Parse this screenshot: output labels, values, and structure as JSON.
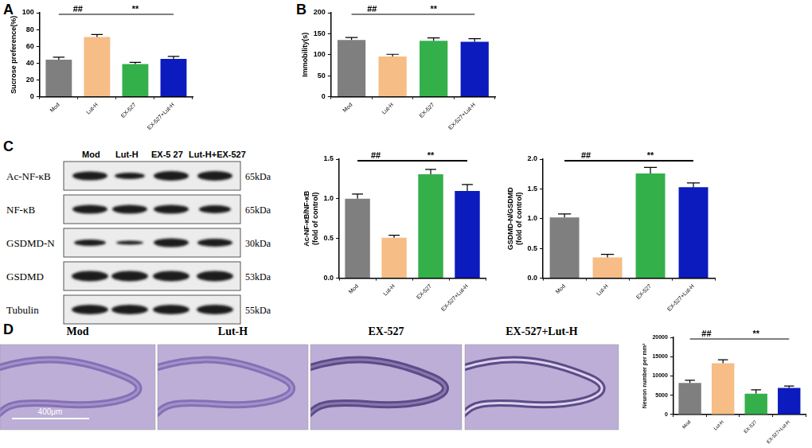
{
  "panels": [
    "A",
    "B",
    "C",
    "D"
  ],
  "chart_data": [
    {
      "type": "bar",
      "categories": [
        "Mod",
        "Lut-H",
        "EX-527",
        "EX-527+Lut-H"
      ],
      "values": [
        44,
        71,
        39,
        45
      ],
      "errors": [
        3,
        3,
        2,
        3
      ],
      "colors": [
        "#7f7f7f",
        "#f6bd86",
        "#34b04b",
        "#0b1bbd"
      ],
      "y_label": "Sucrose preference(%)",
      "ylim": [
        0,
        100
      ],
      "yticks": [
        0,
        20,
        40,
        60,
        80,
        100
      ],
      "grid": false,
      "annotations": [
        {
          "text": "##",
          "from": "Mod",
          "to": "Lut-H"
        },
        {
          "text": "**",
          "from": "Lut-H",
          "to": "EX-527+Lut-H"
        }
      ]
    },
    {
      "type": "bar",
      "categories": [
        "Mod",
        "Lut-H",
        "EX-527",
        "EX-527+Lut-H"
      ],
      "values": [
        135,
        96,
        133,
        131
      ],
      "errors": [
        6,
        5,
        7,
        7
      ],
      "colors": [
        "#7f7f7f",
        "#f6bd86",
        "#34b04b",
        "#0b1bbd"
      ],
      "y_label": "Immobility(s)",
      "ylim": [
        0,
        200
      ],
      "yticks": [
        0,
        50,
        100,
        150,
        200
      ],
      "grid": false,
      "annotations": [
        {
          "text": "##",
          "from": "Mod",
          "to": "Lut-H"
        },
        {
          "text": "**",
          "from": "Lut-H",
          "to": "EX-527+Lut-H"
        }
      ]
    },
    {
      "type": "bar",
      "categories": [
        "Mod",
        "Lut-H",
        "EX-527",
        "EX-527+Lut-H"
      ],
      "values": [
        1.0,
        0.51,
        1.31,
        1.1
      ],
      "errors": [
        0.06,
        0.03,
        0.06,
        0.08
      ],
      "colors": [
        "#7f7f7f",
        "#f6bd86",
        "#34b04b",
        "#0b1bbd"
      ],
      "y_label": [
        "Ac-NF-κB/NF-κB",
        "(fold of control)"
      ],
      "ylim": [
        0,
        1.5
      ],
      "yticks": [
        {
          "value": 0,
          "label": "0.0"
        },
        {
          "value": 0.5,
          "label": "0.5"
        },
        {
          "value": 1,
          "label": "1.0"
        },
        {
          "value": 1.5,
          "label": "1.5"
        }
      ],
      "grid": false,
      "annotations": [
        {
          "text": "##",
          "from": "Mod",
          "to": "Lut-H"
        },
        {
          "text": "**",
          "from": "Lut-H",
          "to": "EX-527+Lut-H"
        }
      ]
    },
    {
      "type": "bar",
      "categories": [
        "Mod",
        "Lut-H",
        "EX-527",
        "EX-527+Lut-H"
      ],
      "values": [
        1.02,
        0.35,
        1.76,
        1.53
      ],
      "errors": [
        0.06,
        0.05,
        0.1,
        0.07
      ],
      "colors": [
        "#7f7f7f",
        "#f6bd86",
        "#34b04b",
        "#0b1bbd"
      ],
      "y_label": [
        "GSDMD-N/GSDMD",
        "(fold of control)"
      ],
      "ylim": [
        0,
        2
      ],
      "yticks": [
        {
          "value": 0,
          "label": "0.0"
        },
        {
          "value": 0.5,
          "label": "0.5"
        },
        {
          "value": 1,
          "label": "1.0"
        },
        {
          "value": 1.5,
          "label": "1.5"
        },
        {
          "value": 2,
          "label": "2.0"
        }
      ],
      "grid": false,
      "annotations": [
        {
          "text": "##",
          "from": "Mod",
          "to": "Lut-H"
        },
        {
          "text": "**",
          "from": "Lut-H",
          "to": "EX-527+Lut-H"
        }
      ]
    },
    {
      "type": "bar",
      "categories": [
        "Mod",
        "Lut-H",
        "EX-527",
        "EX-527+Lut-H"
      ],
      "values": [
        8200,
        13300,
        5400,
        6900
      ],
      "errors": [
        700,
        900,
        1000,
        500
      ],
      "colors": [
        "#7f7f7f",
        "#f6bd86",
        "#34b04b",
        "#0b1bbd"
      ],
      "y_label": "Neuron number per mm²",
      "ylim": [
        0,
        20000
      ],
      "yticks": [
        0,
        5000,
        10000,
        15000,
        20000
      ],
      "grid": false,
      "annotations": [
        {
          "text": "##",
          "from": "Mod",
          "to": "Lut-H"
        },
        {
          "text": "**",
          "from": "Lut-H",
          "to": "EX-527+Lut-H"
        }
      ]
    }
  ],
  "blot": {
    "lanes": [
      "Mod",
      "Lut-H",
      "EX-5 27",
      "Lut-H+EX-527"
    ],
    "rows": [
      {
        "label": "Ac-NF-κB",
        "size": "65kDa"
      },
      {
        "label": "NF-κB",
        "size": "65kDa"
      },
      {
        "label": "GSDMD-N",
        "size": "30kDa"
      },
      {
        "label": "GSDMD",
        "size": "53kDa"
      },
      {
        "label": "Tubulin",
        "size": "55kDa"
      }
    ]
  },
  "histology": {
    "titles": [
      "Mod",
      "Lut-H",
      "EX-527",
      "EX-527+Lut-H"
    ],
    "scale_bar": "400μm"
  }
}
